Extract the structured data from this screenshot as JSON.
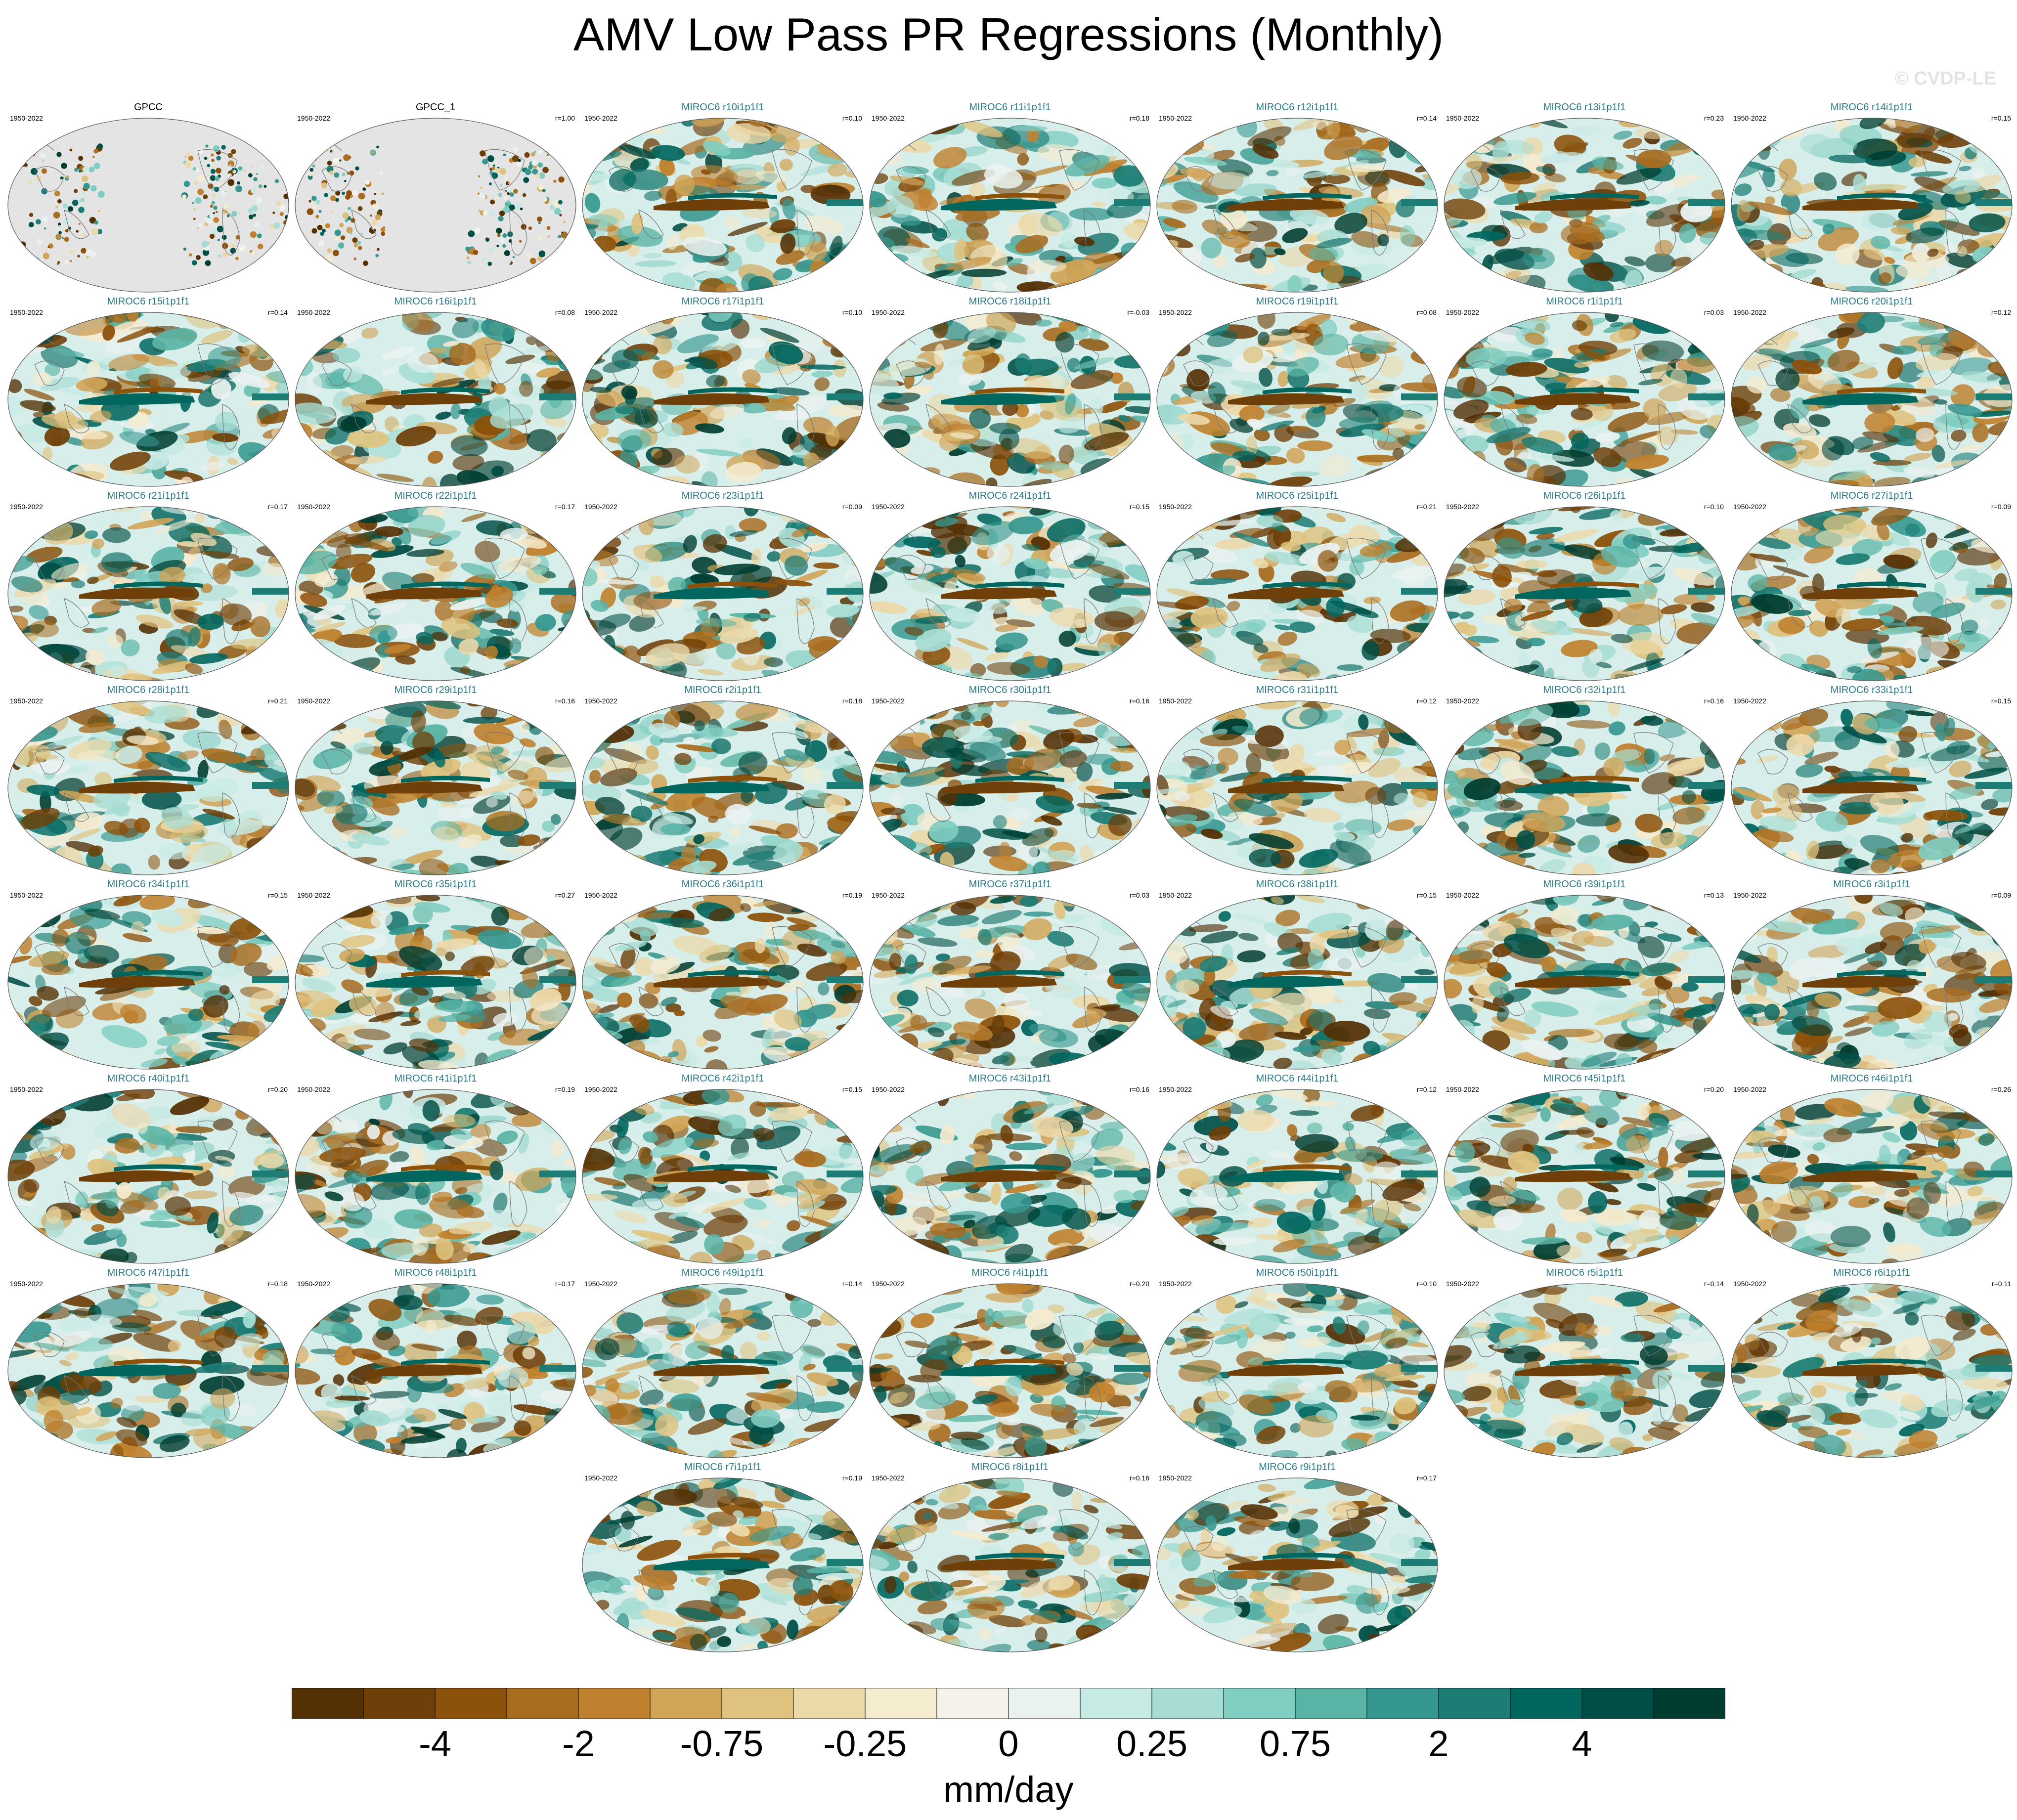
{
  "title": "AMV Low Pass PR Regressions (Monthly)",
  "watermark": "© CVDP-LE",
  "colors": {
    "observed_title": "#000000",
    "model_title": "#2a7a8a",
    "land_observed": "#e4e4e4",
    "palette": [
      "#543005",
      "#6e3f08",
      "#8c510a",
      "#a96d20",
      "#bf812d",
      "#d1a558",
      "#dfc27d",
      "#ecd9aa",
      "#f5ebcf",
      "#f5f2ea",
      "#eaf2f0",
      "#c7eae5",
      "#a7ddd4",
      "#80cdc1",
      "#5ab4a6",
      "#35978f",
      "#1d7d75",
      "#01665e",
      "#004f46",
      "#003c30"
    ]
  },
  "colorbar": {
    "labels": [
      "-4",
      "-2",
      "-0.75",
      "-0.25",
      "0",
      "0.25",
      "0.75",
      "2",
      "4"
    ],
    "units": "mm/day"
  },
  "panels": [
    {
      "title": "GPCC",
      "period": "1950-2022",
      "r": "",
      "observed": true
    },
    {
      "title": "GPCC_1",
      "period": "1950-2022",
      "r": "r=1.00",
      "observed": true
    },
    {
      "title": "MIROC6 r10i1p1f1",
      "period": "1950-2022",
      "r": "r=0.10"
    },
    {
      "title": "MIROC6 r11i1p1f1",
      "period": "1950-2022",
      "r": "r=0.18"
    },
    {
      "title": "MIROC6 r12i1p1f1",
      "period": "1950-2022",
      "r": "r=0.14"
    },
    {
      "title": "MIROC6 r13i1p1f1",
      "period": "1950-2022",
      "r": "r=0.23"
    },
    {
      "title": "MIROC6 r14i1p1f1",
      "period": "1950-2022",
      "r": "r=0.15"
    },
    {
      "title": "MIROC6 r15i1p1f1",
      "period": "1950-2022",
      "r": "r=0.14"
    },
    {
      "title": "MIROC6 r16i1p1f1",
      "period": "1950-2022",
      "r": "r=0.08"
    },
    {
      "title": "MIROC6 r17i1p1f1",
      "period": "1950-2022",
      "r": "r=0.10"
    },
    {
      "title": "MIROC6 r18i1p1f1",
      "period": "1950-2022",
      "r": "r=-0.03"
    },
    {
      "title": "MIROC6 r19i1p1f1",
      "period": "1950-2022",
      "r": "r=0.08"
    },
    {
      "title": "MIROC6 r1i1p1f1",
      "period": "1950-2022",
      "r": "r=0.03"
    },
    {
      "title": "MIROC6 r20i1p1f1",
      "period": "1950-2022",
      "r": "r=0.12"
    },
    {
      "title": "MIROC6 r21i1p1f1",
      "period": "1950-2022",
      "r": "r=0.17"
    },
    {
      "title": "MIROC6 r22i1p1f1",
      "period": "1950-2022",
      "r": "r=0.17"
    },
    {
      "title": "MIROC6 r23i1p1f1",
      "period": "1950-2022",
      "r": "r=0.09"
    },
    {
      "title": "MIROC6 r24i1p1f1",
      "period": "1950-2022",
      "r": "r=0.15"
    },
    {
      "title": "MIROC6 r25i1p1f1",
      "period": "1950-2022",
      "r": "r=0.21"
    },
    {
      "title": "MIROC6 r26i1p1f1",
      "period": "1950-2022",
      "r": "r=0.10"
    },
    {
      "title": "MIROC6 r27i1p1f1",
      "period": "1950-2022",
      "r": "r=0.09"
    },
    {
      "title": "MIROC6 r28i1p1f1",
      "period": "1950-2022",
      "r": "r=0.21"
    },
    {
      "title": "MIROC6 r29i1p1f1",
      "period": "1950-2022",
      "r": "r=0.16"
    },
    {
      "title": "MIROC6 r2i1p1f1",
      "period": "1950-2022",
      "r": "r=0.18"
    },
    {
      "title": "MIROC6 r30i1p1f1",
      "period": "1950-2022",
      "r": "r=0.16"
    },
    {
      "title": "MIROC6 r31i1p1f1",
      "period": "1950-2022",
      "r": "r=0.12"
    },
    {
      "title": "MIROC6 r32i1p1f1",
      "period": "1950-2022",
      "r": "r=0.16"
    },
    {
      "title": "MIROC6 r33i1p1f1",
      "period": "1950-2022",
      "r": "r=0.15"
    },
    {
      "title": "MIROC6 r34i1p1f1",
      "period": "1950-2022",
      "r": "r=0.15"
    },
    {
      "title": "MIROC6 r35i1p1f1",
      "period": "1950-2022",
      "r": "r=0.27"
    },
    {
      "title": "MIROC6 r36i1p1f1",
      "period": "1950-2022",
      "r": "r=0.19"
    },
    {
      "title": "MIROC6 r37i1p1f1",
      "period": "1950-2022",
      "r": "r=0.03"
    },
    {
      "title": "MIROC6 r38i1p1f1",
      "period": "1950-2022",
      "r": "r=0.15"
    },
    {
      "title": "MIROC6 r39i1p1f1",
      "period": "1950-2022",
      "r": "r=0.13"
    },
    {
      "title": "MIROC6 r3i1p1f1",
      "period": "1950-2022",
      "r": "r=0.09"
    },
    {
      "title": "MIROC6 r40i1p1f1",
      "period": "1950-2022",
      "r": "r=0.20"
    },
    {
      "title": "MIROC6 r41i1p1f1",
      "period": "1950-2022",
      "r": "r=0.19"
    },
    {
      "title": "MIROC6 r42i1p1f1",
      "period": "1950-2022",
      "r": "r=0.15"
    },
    {
      "title": "MIROC6 r43i1p1f1",
      "period": "1950-2022",
      "r": "r=0.16"
    },
    {
      "title": "MIROC6 r44i1p1f1",
      "period": "1950-2022",
      "r": "r=0.12"
    },
    {
      "title": "MIROC6 r45i1p1f1",
      "period": "1950-2022",
      "r": "r=0.20"
    },
    {
      "title": "MIROC6 r46i1p1f1",
      "period": "1950-2022",
      "r": "r=0.26"
    },
    {
      "title": "MIROC6 r47i1p1f1",
      "period": "1950-2022",
      "r": "r=0.18"
    },
    {
      "title": "MIROC6 r48i1p1f1",
      "period": "1950-2022",
      "r": "r=0.17"
    },
    {
      "title": "MIROC6 r49i1p1f1",
      "period": "1950-2022",
      "r": "r=0.14"
    },
    {
      "title": "MIROC6 r4i1p1f1",
      "period": "1950-2022",
      "r": "r=0.20"
    },
    {
      "title": "MIROC6 r50i1p1f1",
      "period": "1950-2022",
      "r": "r=0.10"
    },
    {
      "title": "MIROC6 r5i1p1f1",
      "period": "1950-2022",
      "r": "r=0.14"
    },
    {
      "title": "MIROC6 r6i1p1f1",
      "period": "1950-2022",
      "r": "r=0.11"
    },
    {
      "title": "MIROC6 r7i1p1f1",
      "period": "1950-2022",
      "r": "r=0.19"
    },
    {
      "title": "MIROC6 r8i1p1f1",
      "period": "1950-2022",
      "r": "r=0.16"
    },
    {
      "title": "MIROC6 r9i1p1f1",
      "period": "1950-2022",
      "r": "r=0.17"
    }
  ]
}
